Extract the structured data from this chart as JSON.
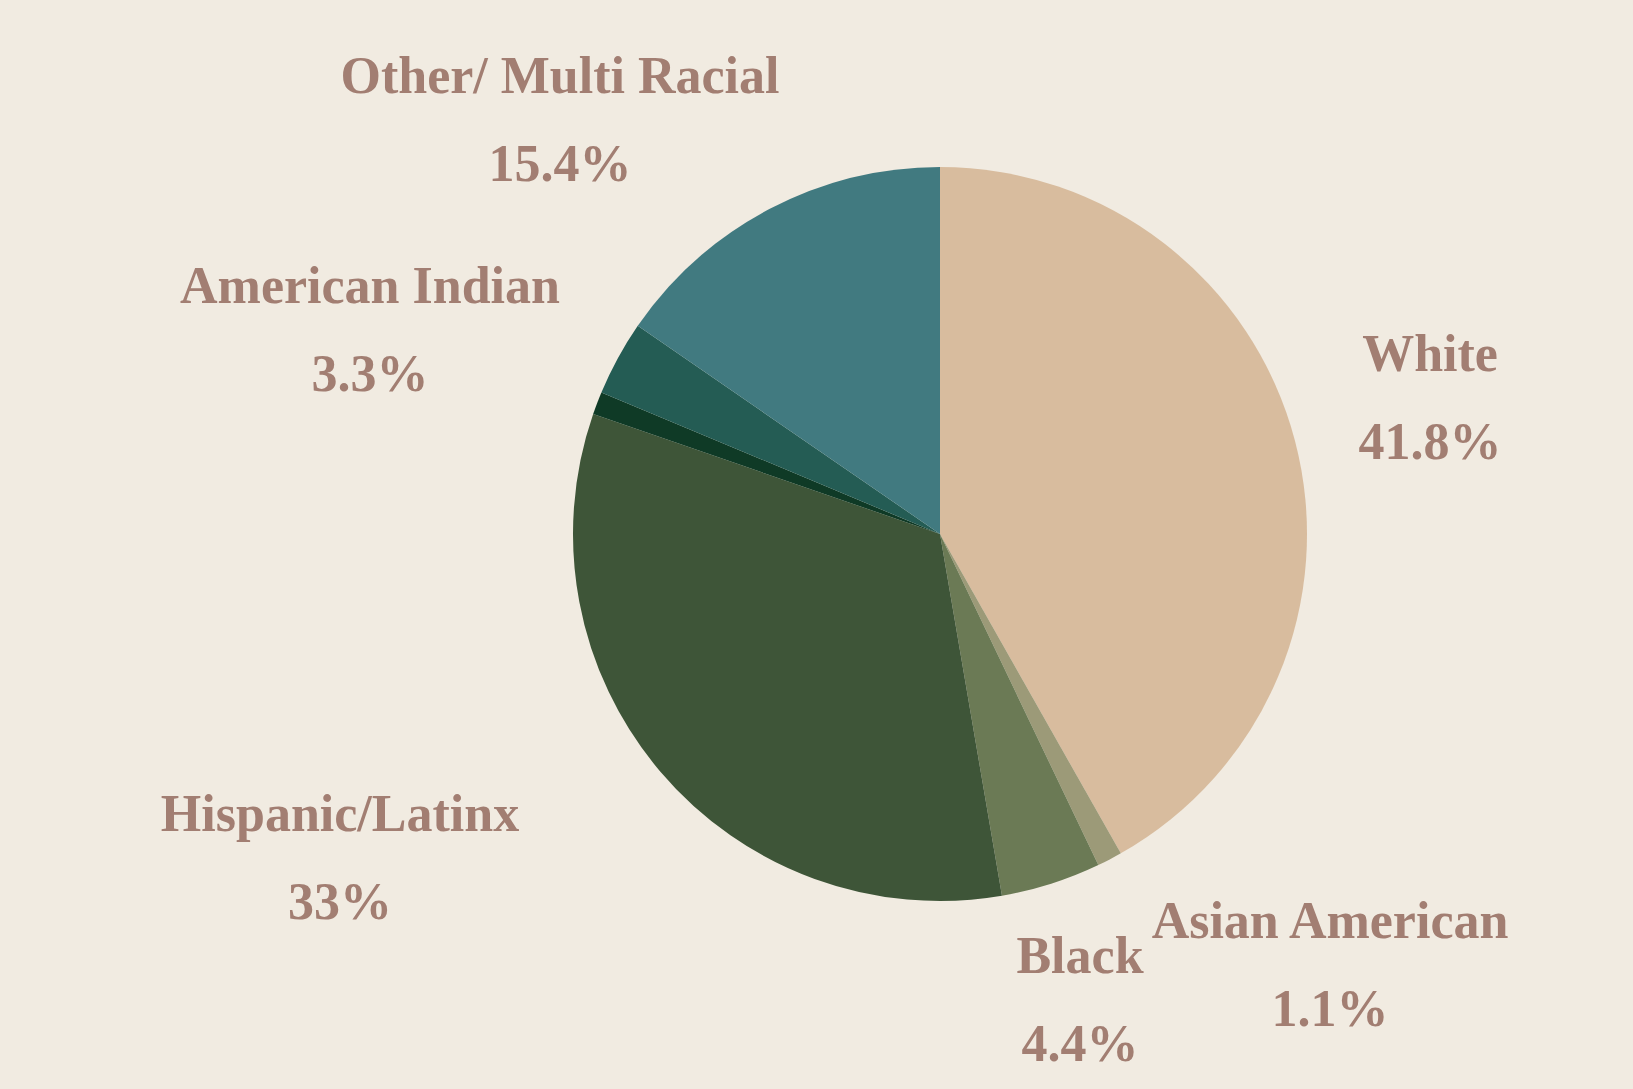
{
  "chart_data": {
    "type": "pie",
    "categories": [
      "White",
      "Asian American",
      "Black",
      "Hispanic/Latinx",
      null,
      "American Indian",
      "Other/ Multi Racial"
    ],
    "values": [
      41.8,
      1.1,
      4.4,
      33,
      1.0,
      3.3,
      15.4
    ],
    "value_labels": [
      "41.8%",
      "1.1%",
      "4.4%",
      "33%",
      null,
      "3.3%",
      "15.4%"
    ],
    "colors": [
      "#d8bc9e",
      "#9c9a78",
      "#6b7a55",
      "#3e5538",
      "#0f3a26",
      "#245c54",
      "#417a80"
    ],
    "legend": false
  }
}
